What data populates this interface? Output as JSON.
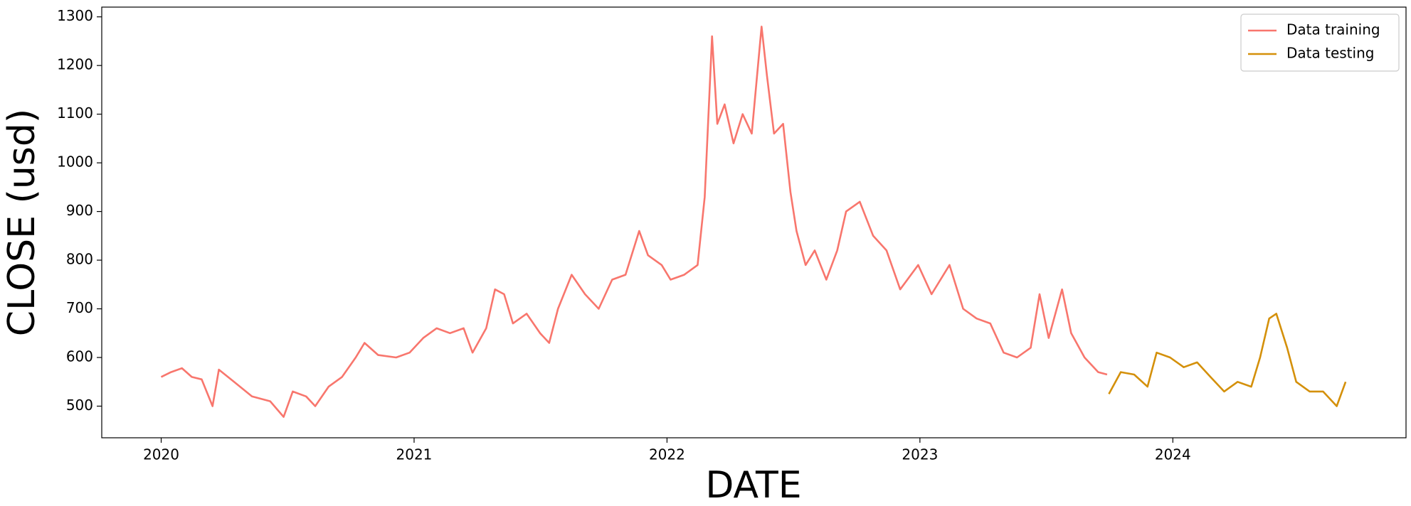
{
  "chart_data": {
    "type": "line",
    "x_label": "DATE",
    "y_label": "CLOSE (usd)",
    "x": [
      2020.0,
      2020.039,
      2020.082,
      2020.121,
      2020.16,
      2020.203,
      2020.228,
      2020.288,
      2020.359,
      2020.431,
      2020.484,
      2020.52,
      2020.573,
      2020.609,
      2020.662,
      2020.715,
      2020.769,
      2020.804,
      2020.858,
      2020.929,
      2020.982,
      2021.036,
      2021.089,
      2021.142,
      2021.196,
      2021.231,
      2021.285,
      2021.32,
      2021.356,
      2021.391,
      2021.445,
      2021.498,
      2021.534,
      2021.569,
      2021.623,
      2021.676,
      2021.73,
      2021.783,
      2021.836,
      2021.89,
      2021.925,
      2021.979,
      2022.014,
      2022.068,
      2022.121,
      2022.149,
      2022.178,
      2022.199,
      2022.228,
      2022.263,
      2022.299,
      2022.335,
      2022.374,
      2022.395,
      2022.423,
      2022.459,
      2022.488,
      2022.512,
      2022.548,
      2022.584,
      2022.63,
      2022.673,
      2022.708,
      2022.762,
      2022.815,
      2022.868,
      2022.922,
      2022.993,
      2023.046,
      2023.117,
      2023.171,
      2023.224,
      2023.278,
      2023.331,
      2023.384,
      2023.438,
      2023.473,
      2023.509,
      2023.562,
      2023.598,
      2023.651,
      2023.705,
      2023.74,
      2023.747,
      2023.794,
      2023.847,
      2023.9,
      2023.936,
      2023.989,
      2024.043,
      2024.096,
      2024.149,
      2024.203,
      2024.256,
      2024.31,
      2024.345,
      2024.381,
      2024.409,
      2024.452,
      2024.488,
      2024.541,
      2024.594,
      2024.648,
      2024.683
    ],
    "series": [
      {
        "name": "Data training",
        "color": "#f8766d",
        "values": [
          560,
          570,
          578,
          560,
          555,
          500,
          575,
          550,
          520,
          510,
          478,
          530,
          520,
          500,
          540,
          560,
          600,
          630,
          605,
          600,
          610,
          640,
          660,
          650,
          660,
          610,
          660,
          740,
          730,
          670,
          690,
          650,
          630,
          700,
          770,
          730,
          700,
          760,
          770,
          860,
          810,
          790,
          760,
          770,
          790,
          930,
          1260,
          1080,
          1120,
          1040,
          1100,
          1060,
          1280,
          1180,
          1060,
          1080,
          940,
          860,
          790,
          820,
          760,
          820,
          900,
          920,
          850,
          820,
          740,
          790,
          730,
          790,
          700,
          680,
          670,
          610,
          600,
          620,
          730,
          640,
          740,
          650,
          600,
          570,
          565,
          null,
          null,
          null,
          null,
          null,
          null,
          null,
          null,
          null,
          null,
          null,
          null,
          null,
          null,
          null,
          null,
          null,
          null,
          null,
          null,
          null
        ]
      },
      {
        "name": "Data testing",
        "color": "#d4900a",
        "values": [
          null,
          null,
          null,
          null,
          null,
          null,
          null,
          null,
          null,
          null,
          null,
          null,
          null,
          null,
          null,
          null,
          null,
          null,
          null,
          null,
          null,
          null,
          null,
          null,
          null,
          null,
          null,
          null,
          null,
          null,
          null,
          null,
          null,
          null,
          null,
          null,
          null,
          null,
          null,
          null,
          null,
          null,
          null,
          null,
          null,
          null,
          null,
          null,
          null,
          null,
          null,
          null,
          null,
          null,
          null,
          null,
          null,
          null,
          null,
          null,
          null,
          null,
          null,
          null,
          null,
          null,
          null,
          null,
          null,
          null,
          null,
          null,
          null,
          null,
          null,
          null,
          null,
          null,
          null,
          null,
          null,
          null,
          null,
          525,
          570,
          565,
          540,
          610,
          600,
          580,
          590,
          560,
          530,
          550,
          540,
          600,
          680,
          690,
          620,
          550,
          530,
          530,
          500,
          550
        ]
      }
    ],
    "xlim": [
      2019.765,
      2024.922
    ],
    "xticks": [
      2020,
      2021,
      2022,
      2023,
      2024
    ],
    "ylim": [
      435,
      1320
    ],
    "yticks": [
      500,
      600,
      700,
      800,
      900,
      1000,
      1100,
      1200,
      1300
    ],
    "legend": "upper right"
  }
}
